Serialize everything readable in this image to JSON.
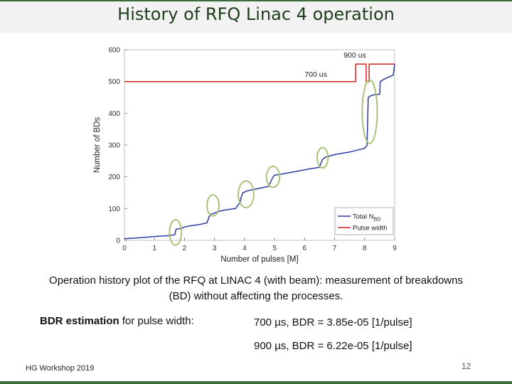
{
  "slide": {
    "title": "History of RFQ Linac 4 operation",
    "caption": "Operation history plot of the RFQ at LINAC 4 (with beam): measurement of breakdowns (BD) without affecting the processes.",
    "bdr_label_bold": "BDR estimation",
    "bdr_label_rest": " for  pulse width:",
    "bdr_rows": [
      "700 µs,  BDR = 3.85e-05 [1/pulse]",
      "900 µs,  BDR = 6.22e-05 [1/pulse]"
    ],
    "footer": "HG Workshop 2019",
    "page_number": "12"
  },
  "chart_data": {
    "type": "line",
    "xlabel": "Number of pulses [M]",
    "ylabel": "Number of BDs",
    "xlim": [
      0,
      9
    ],
    "ylim": [
      0,
      600
    ],
    "xticks": [
      "0",
      "1",
      "2",
      "3",
      "4",
      "5",
      "6",
      "7",
      "8",
      "9"
    ],
    "yticks": [
      "0",
      "100",
      "200",
      "300",
      "400",
      "500",
      "600"
    ],
    "series": [
      {
        "name": "Total N",
        "name_sub": "BD",
        "color": "#2b3aa0",
        "x": [
          0,
          0.5,
          1.0,
          1.5,
          1.68,
          1.72,
          1.9,
          2.0,
          2.2,
          2.5,
          2.75,
          2.82,
          2.88,
          3.0,
          3.1,
          3.3,
          3.7,
          3.85,
          3.9,
          3.95,
          4.1,
          4.3,
          4.8,
          4.9,
          4.95,
          5.0,
          5.2,
          5.6,
          6.0,
          6.5,
          6.55,
          6.6,
          6.7,
          7.0,
          7.5,
          7.8,
          8.0,
          8.08,
          8.12,
          8.2,
          8.3,
          8.5,
          8.52,
          8.7,
          8.95,
          9.0
        ],
        "y": [
          5,
          8,
          12,
          15,
          18,
          35,
          38,
          42,
          46,
          50,
          55,
          75,
          82,
          86,
          90,
          95,
          100,
          120,
          140,
          150,
          156,
          160,
          170,
          190,
          200,
          205,
          208,
          215,
          222,
          230,
          245,
          255,
          262,
          270,
          278,
          285,
          290,
          300,
          450,
          455,
          458,
          460,
          500,
          510,
          520,
          555
        ]
      },
      {
        "name": "Pulse width",
        "color": "#d42020",
        "x": [
          0,
          7.7,
          7.7,
          8.05,
          8.05,
          8.15,
          8.15,
          9.0
        ],
        "y": [
          500,
          500,
          555,
          555,
          500,
          500,
          555,
          555
        ]
      }
    ],
    "annotations": [
      {
        "text": "900 us",
        "x": 7.3,
        "y": 575
      },
      {
        "text": "700 us",
        "x": 6.0,
        "y": 515
      }
    ],
    "highlight_ellipses": [
      {
        "cx": 1.7,
        "cy": 25,
        "rx": 0.2,
        "ry": 40
      },
      {
        "cx": 2.95,
        "cy": 110,
        "rx": 0.2,
        "ry": 33
      },
      {
        "cx": 4.05,
        "cy": 145,
        "rx": 0.26,
        "ry": 42
      },
      {
        "cx": 4.95,
        "cy": 200,
        "rx": 0.22,
        "ry": 33
      },
      {
        "cx": 6.6,
        "cy": 260,
        "rx": 0.18,
        "ry": 32
      },
      {
        "cx": 8.17,
        "cy": 405,
        "rx": 0.25,
        "ry": 100
      }
    ],
    "legend_position": "bottom-right",
    "grid": false
  }
}
